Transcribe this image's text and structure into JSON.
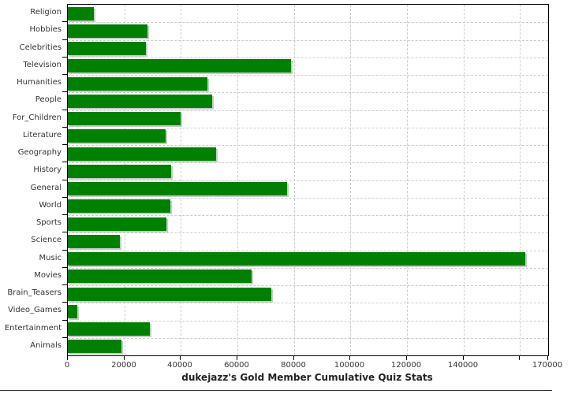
{
  "chart_data": {
    "type": "bar",
    "orientation": "horizontal",
    "title": "dukejazz's Gold Member Cumulative Quiz Stats",
    "categories": [
      "Religion",
      "Hobbies",
      "Celebrities",
      "Television",
      "Humanities",
      "People",
      "For_Children",
      "Literature",
      "Geography",
      "History",
      "General",
      "World",
      "Sports",
      "Science",
      "Music",
      "Movies",
      "Brain_Teasers",
      "Video_Games",
      "Entertainment",
      "Animals"
    ],
    "values": [
      9300,
      28300,
      27500,
      79000,
      49300,
      51200,
      40000,
      34500,
      52600,
      36700,
      77500,
      36400,
      35000,
      18300,
      162000,
      65000,
      72000,
      3400,
      29000,
      19000
    ],
    "xlim": [
      0,
      170000
    ],
    "x_tick_values": [
      0,
      20000,
      40000,
      60000,
      80000,
      100000,
      120000,
      140000,
      160000
    ],
    "x_tick_labels": [
      "0",
      "20000",
      "40000",
      "60000",
      "80000",
      "100000",
      "120000",
      "140000",
      ""
    ],
    "x_axis_end_value": 170000,
    "x_axis_end_label": "170000",
    "bar_color": "#008000",
    "grid_color": "#cccccc",
    "grid": true,
    "legend": false
  }
}
